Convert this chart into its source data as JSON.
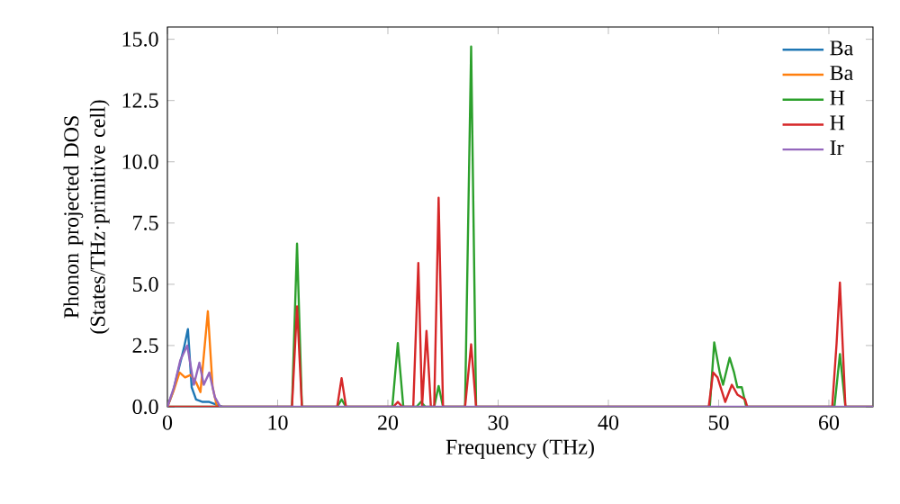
{
  "chart_data": {
    "type": "line",
    "xlabel": "Frequency (THz)",
    "ylabel": "Phonon projected DOS\n(States/THz·primitive cell)",
    "xlim": [
      0,
      64
    ],
    "ylim": [
      0,
      15.5
    ],
    "xticks": [
      0,
      10,
      20,
      30,
      40,
      50,
      60
    ],
    "yticks": [
      {
        "value": 0,
        "label": "0.0"
      },
      {
        "value": 2.5,
        "label": "2.5"
      },
      {
        "value": 5,
        "label": "5.0"
      },
      {
        "value": 7.5,
        "label": "7.5"
      },
      {
        "value": 10,
        "label": "10.0"
      },
      {
        "value": 12.5,
        "label": "12.5"
      },
      {
        "value": 15,
        "label": "15.0"
      }
    ],
    "grid": false,
    "legend": "top right",
    "marker": "none",
    "line_style": "solid",
    "series": [
      {
        "name": "Ba",
        "color": "#1f77b4",
        "x": [
          0,
          0.5,
          1,
          1.5,
          1.86,
          2.2,
          2.6,
          3.2,
          3.8,
          4.4,
          5
        ],
        "values": [
          0,
          0.6,
          1.5,
          2.4,
          3.17,
          0.8,
          0.3,
          0.2,
          0.2,
          0.1,
          0
        ]
      },
      {
        "name": "Ba",
        "color": "#ff7f0e",
        "x": [
          0,
          0.6,
          1.1,
          1.6,
          2.1,
          2.6,
          3.0,
          3.67,
          4.1,
          4.5
        ],
        "values": [
          0,
          0.7,
          1.4,
          1.2,
          1.3,
          1.0,
          0.6,
          3.9,
          0.8,
          0
        ]
      },
      {
        "name": "H",
        "color": "#2ca02c",
        "x": [
          0,
          11.3,
          11.76,
          12.2,
          15.4,
          15.8,
          16.2,
          20.4,
          20.9,
          21.4,
          22.6,
          23.0,
          23.4,
          24.2,
          24.6,
          25.0,
          27.0,
          27.55,
          28.0,
          49.2,
          49.6,
          50.1,
          50.4,
          51.0,
          51.4,
          51.7,
          52.1,
          52.5,
          60.5,
          61.0,
          61.5,
          64
        ],
        "values": [
          0,
          0,
          6.66,
          0,
          0,
          0.3,
          0,
          0,
          2.6,
          0,
          0,
          0.2,
          0,
          0,
          0.85,
          0,
          0,
          14.7,
          0,
          0,
          2.63,
          1.4,
          0.9,
          2.0,
          1.4,
          0.8,
          0.8,
          0,
          0,
          2.15,
          0,
          0
        ]
      },
      {
        "name": "H",
        "color": "#d62728",
        "x": [
          0,
          11.3,
          11.76,
          12.2,
          15.4,
          15.8,
          16.2,
          20.5,
          20.9,
          21.3,
          22.3,
          22.76,
          23.1,
          23.5,
          23.9,
          24.2,
          24.6,
          25.0,
          27.0,
          27.55,
          28.0,
          49.1,
          49.5,
          49.9,
          50.6,
          51.2,
          51.7,
          52.4,
          52.6,
          60.3,
          60.7,
          61.0,
          61.5,
          64
        ],
        "values": [
          0,
          0,
          4.1,
          0,
          0,
          1.17,
          0,
          0,
          0.2,
          0,
          0,
          5.87,
          0,
          3.1,
          0,
          0,
          8.53,
          0,
          0,
          2.55,
          0,
          0,
          1.4,
          1.2,
          0.2,
          0.9,
          0.5,
          0.3,
          0,
          0,
          2.6,
          5.07,
          0,
          0
        ]
      },
      {
        "name": "Ir",
        "color": "#9467bd",
        "x": [
          0,
          0.6,
          1.17,
          1.8,
          2.4,
          2.9,
          3.3,
          3.8,
          4.3,
          4.8,
          64
        ],
        "values": [
          0,
          0.8,
          1.9,
          2.5,
          0.9,
          1.8,
          0.9,
          1.4,
          0.4,
          0,
          0
        ]
      }
    ]
  }
}
